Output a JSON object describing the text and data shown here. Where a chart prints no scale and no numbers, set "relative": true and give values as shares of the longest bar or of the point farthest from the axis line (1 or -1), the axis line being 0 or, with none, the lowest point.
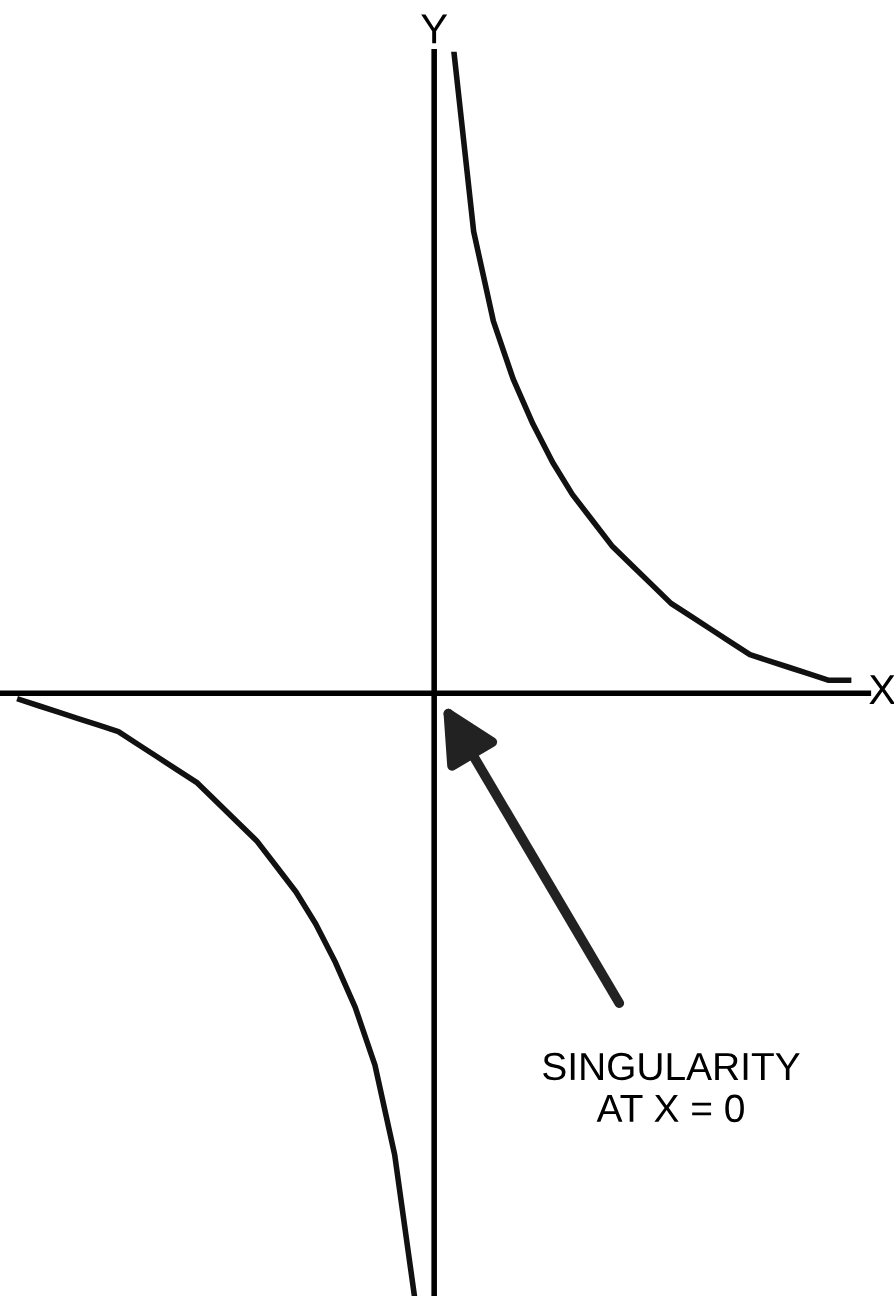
{
  "chart_data": {
    "type": "line",
    "relative": true,
    "xlabel": "X",
    "ylabel": "Y",
    "categories": [
      null,
      null,
      null,
      null,
      null,
      null,
      null,
      null,
      null,
      null,
      null,
      null,
      null,
      null,
      null,
      null,
      null,
      null,
      null,
      null,
      null,
      null,
      null,
      null,
      null,
      null,
      null,
      null,
      null,
      null,
      null,
      null,
      null,
      null,
      null,
      null,
      null,
      null,
      null,
      null,
      null,
      null,
      null
    ],
    "series": [
      {
        "color": "#111111",
        "values": [
          -0.01,
          -0.02,
          -0.03,
          -0.04,
          -0.05,
          -0.06,
          -0.08,
          -0.1,
          -0.12,
          -0.14,
          -0.17,
          -0.2,
          -0.23,
          -0.27,
          -0.31,
          -0.36,
          -0.42,
          -0.49,
          -0.58,
          -0.72,
          -0.94,
          null,
          null,
          null,
          null,
          null,
          null,
          null,
          null,
          null,
          null,
          null,
          null,
          null,
          null,
          null,
          null,
          null,
          null,
          null,
          null,
          null,
          null
        ]
      },
      {
        "color": "#111111",
        "values": [
          null,
          null,
          null,
          null,
          null,
          null,
          null,
          null,
          null,
          null,
          null,
          null,
          null,
          null,
          null,
          null,
          null,
          null,
          null,
          null,
          null,
          null,
          1.0,
          0.72,
          0.58,
          0.49,
          0.42,
          0.36,
          0.31,
          0.27,
          0.23,
          0.2,
          0.17,
          0.14,
          0.12,
          0.1,
          0.08,
          0.06,
          0.05,
          0.04,
          0.03,
          0.02,
          0.02
        ]
      }
    ],
    "annotations": [
      "SINGULARITY\nAT X = 0"
    ],
    "legend": false
  }
}
